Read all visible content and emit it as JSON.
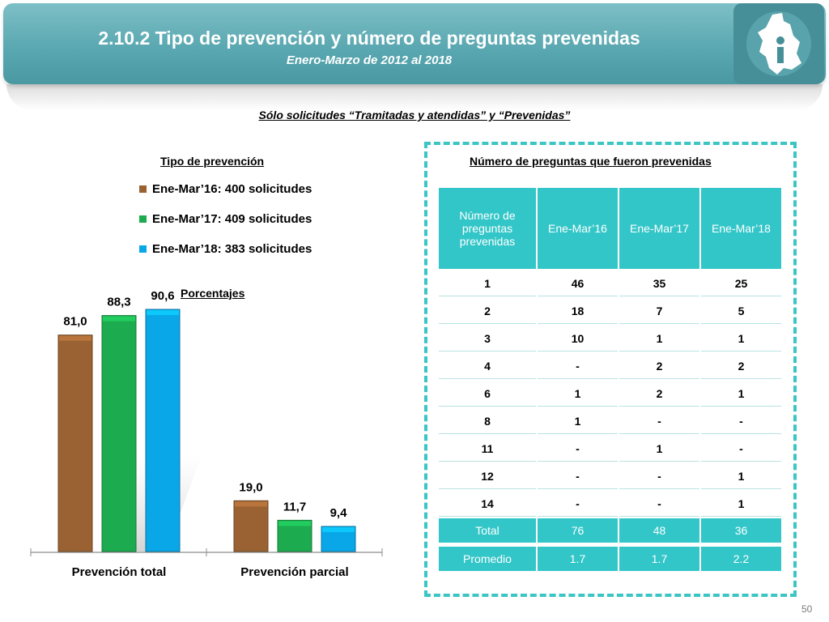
{
  "header": {
    "title": "2.10.2 Tipo de prevención y número de preguntas prevenidas",
    "subtitle": "Enero-Marzo de 2012 al 2018"
  },
  "filter_note": "Sólo solicitudes “Tramitadas y atendidas” y “Prevenidas”",
  "legend": {
    "title": "Tipo de prevención",
    "items": [
      {
        "label": "Ene-Mar’16: 400 solicitudes",
        "color": "#9a6232"
      },
      {
        "label": "Ene-Mar’17: 409 solicitudes",
        "color": "#1dab4f"
      },
      {
        "label": "Ene-Mar’18: 383 solicitudes",
        "color": "#0aa7e8"
      }
    ]
  },
  "chart_caption": "Porcentajes",
  "chart_data": {
    "type": "bar",
    "title": "Porcentajes",
    "categories": [
      "Prevención total",
      "Prevención parcial"
    ],
    "series": [
      {
        "name": "Ene-Mar’16",
        "color": "#9a6232",
        "values": [
          81.0,
          19.0
        ],
        "labels": [
          "81,0",
          "19,0"
        ]
      },
      {
        "name": "Ene-Mar’17",
        "color": "#1dab4f",
        "values": [
          88.3,
          11.7
        ],
        "labels": [
          "88,3",
          "11,7"
        ]
      },
      {
        "name": "Ene-Mar’18",
        "color": "#0aa7e8",
        "values": [
          90.6,
          9.4
        ],
        "labels": [
          "90,6",
          "9,4"
        ]
      }
    ],
    "xlabel": "",
    "ylabel": "",
    "ylim": [
      0,
      100
    ],
    "grid": false
  },
  "questions_table": {
    "title": "Número de preguntas que fueron prevenidas",
    "headers": [
      "Número de preguntas prevenidas",
      "Ene-Mar’16",
      "Ene-Mar’17",
      "Ene-Mar’18"
    ],
    "rows": [
      [
        "1",
        "46",
        "35",
        "25"
      ],
      [
        "2",
        "18",
        "7",
        "5"
      ],
      [
        "3",
        "10",
        "1",
        "1"
      ],
      [
        "4",
        "-",
        "2",
        "2"
      ],
      [
        "6",
        "1",
        "2",
        "1"
      ],
      [
        "8",
        "1",
        "-",
        "-"
      ],
      [
        "11",
        "-",
        "1",
        "-"
      ],
      [
        "12",
        "-",
        "-",
        "1"
      ],
      [
        "14",
        "-",
        "-",
        "1"
      ]
    ],
    "total": [
      "Total",
      "76",
      "48",
      "36"
    ],
    "average": [
      "Promedio",
      "1.7",
      "1.7",
      "2.2"
    ]
  },
  "page_number": "50"
}
